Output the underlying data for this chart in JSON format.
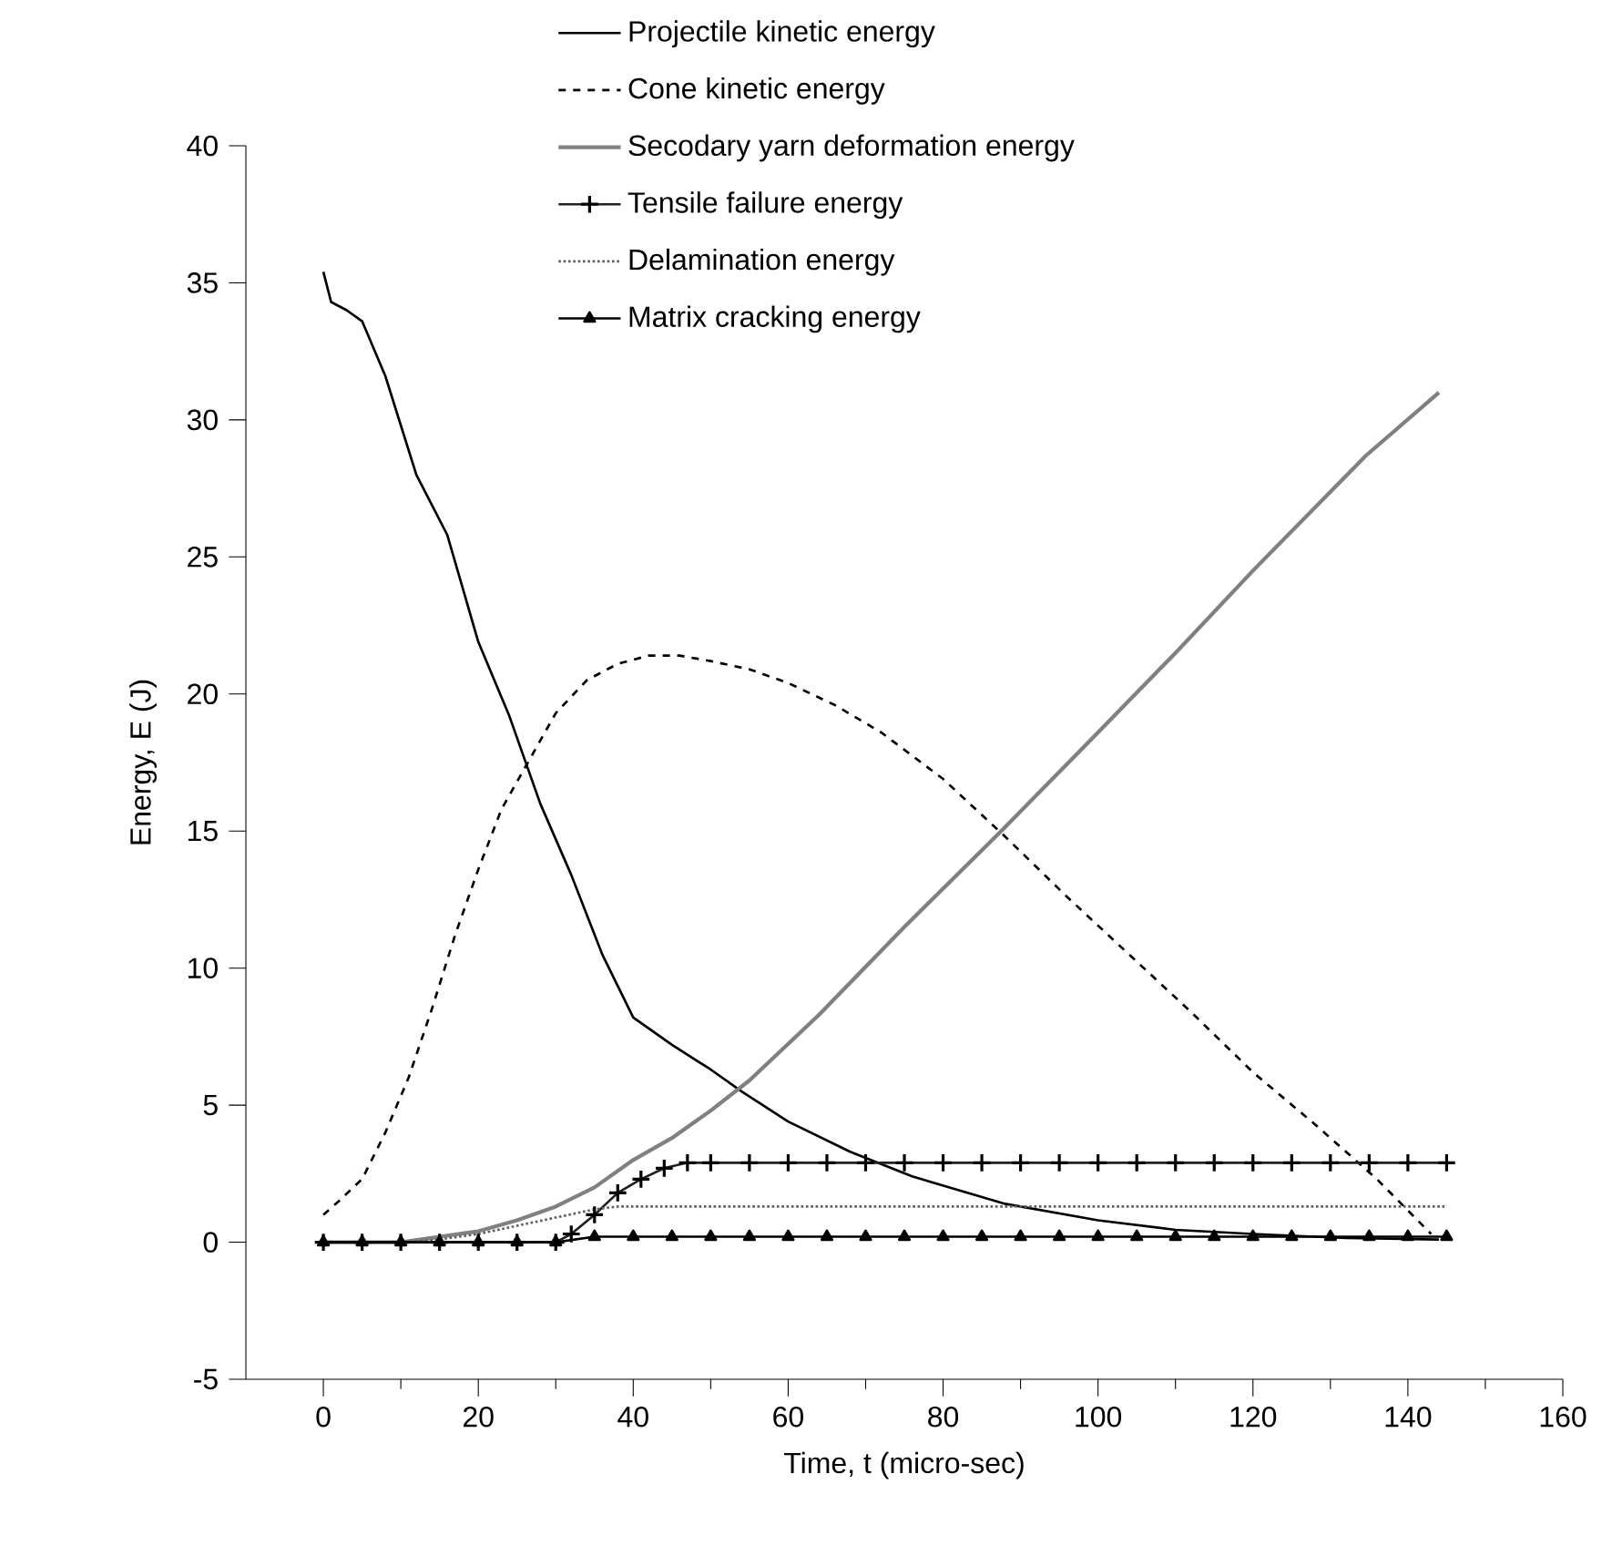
{
  "chart_data": {
    "type": "line",
    "xlabel": "Time, t (micro-sec)",
    "ylabel": "Energy, E (J)",
    "xlim": [
      -10,
      160
    ],
    "xticks": [
      0,
      20,
      40,
      60,
      80,
      100,
      120,
      140,
      160
    ],
    "ylim": [
      -5,
      40
    ],
    "yticks": [
      -5,
      0,
      5,
      10,
      15,
      20,
      25,
      30,
      35,
      40
    ],
    "legend": "top",
    "grid": false,
    "series": [
      {
        "name": "Projectile kinetic energy",
        "color": "#000000",
        "line_style": "solid",
        "marker": "none",
        "x": [
          0,
          1,
          3,
          5,
          8,
          12,
          16,
          20,
          24,
          28,
          32,
          36,
          40,
          45,
          50,
          54,
          60,
          68,
          76,
          88,
          100,
          110,
          120,
          132,
          144
        ],
        "values": [
          35.4,
          34.3,
          34,
          33.6,
          31.6,
          28,
          25.8,
          21.9,
          19.2,
          16,
          13.4,
          10.5,
          8.2,
          7.2,
          6.3,
          5.5,
          4.4,
          3.3,
          2.4,
          1.4,
          0.8,
          0.45,
          0.3,
          0.15,
          0.1
        ]
      },
      {
        "name": "Cone kinetic energy",
        "color": "#000000",
        "line_style": "dashed",
        "marker": "none",
        "x": [
          0,
          2,
          5,
          8,
          11,
          14,
          17,
          20,
          23,
          26,
          30,
          34,
          38,
          42,
          46,
          50,
          55,
          60,
          66,
          72,
          80,
          88,
          96,
          104,
          112,
          120,
          128,
          136,
          143
        ],
        "values": [
          1,
          1.5,
          2.3,
          4,
          6,
          8.5,
          11.2,
          13.6,
          15.8,
          17.3,
          19.3,
          20.5,
          21.1,
          21.4,
          21.4,
          21.2,
          20.9,
          20.4,
          19.6,
          18.6,
          16.9,
          14.8,
          12.6,
          10.5,
          8.4,
          6.2,
          4.3,
          2.3,
          0.3
        ]
      },
      {
        "name": "Secodary yarn deformation energy",
        "color": "#808080",
        "line_style": "solid",
        "marker": "none",
        "x": [
          0,
          10,
          15,
          20,
          25,
          30,
          35,
          40,
          45,
          50,
          55,
          64,
          75,
          87.5,
          100,
          110,
          120,
          134.6,
          144
        ],
        "values": [
          0,
          0,
          0.2,
          0.4,
          0.8,
          1.3,
          2,
          3,
          3.8,
          4.8,
          5.9,
          8.3,
          11.5,
          15,
          18.6,
          21.5,
          24.5,
          28.7,
          31
        ]
      },
      {
        "name": "Tensile failure energy",
        "color": "#202020",
        "line_style": "solid",
        "marker": "cross",
        "x": [
          0,
          5,
          10,
          15,
          20,
          25,
          30,
          32,
          35,
          38,
          41,
          44,
          47,
          50,
          55,
          60,
          65,
          70,
          75,
          80,
          85,
          90,
          95,
          100,
          105,
          110,
          115,
          120,
          125,
          130,
          135,
          140,
          145
        ],
        "values": [
          0,
          0,
          0,
          0,
          0,
          0,
          0,
          0.3,
          1.0,
          1.8,
          2.3,
          2.7,
          2.9,
          2.9,
          2.9,
          2.9,
          2.9,
          2.9,
          2.9,
          2.9,
          2.9,
          2.9,
          2.9,
          2.9,
          2.9,
          2.9,
          2.9,
          2.9,
          2.9,
          2.9,
          2.9,
          2.9,
          2.9
        ]
      },
      {
        "name": "Delamination energy",
        "color": "#606060",
        "line_style": "dotted",
        "marker": "none",
        "x": [
          0,
          10,
          15,
          20,
          25,
          30,
          35,
          38,
          50,
          70,
          90,
          110,
          130,
          145
        ],
        "values": [
          0,
          0,
          0.1,
          0.3,
          0.6,
          0.9,
          1.2,
          1.3,
          1.3,
          1.3,
          1.3,
          1.3,
          1.3,
          1.3
        ]
      },
      {
        "name": "Matrix cracking energy",
        "color": "#000000",
        "line_style": "solid",
        "marker": "triangle",
        "x": [
          0,
          5,
          10,
          15,
          20,
          25,
          30,
          35,
          40,
          45,
          50,
          55,
          60,
          65,
          70,
          75,
          80,
          85,
          90,
          95,
          100,
          105,
          110,
          115,
          120,
          125,
          130,
          135,
          140,
          145
        ],
        "values": [
          0,
          0,
          0,
          0,
          0,
          0,
          0,
          0.2,
          0.2,
          0.2,
          0.2,
          0.2,
          0.2,
          0.2,
          0.2,
          0.2,
          0.2,
          0.2,
          0.2,
          0.2,
          0.2,
          0.2,
          0.2,
          0.2,
          0.2,
          0.2,
          0.2,
          0.2,
          0.2,
          0.2
        ]
      }
    ]
  }
}
